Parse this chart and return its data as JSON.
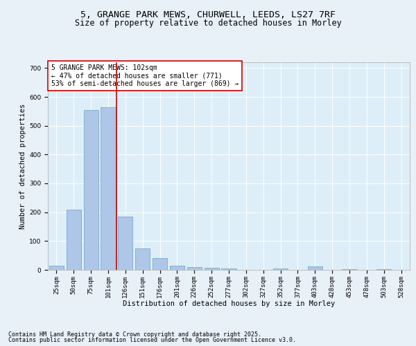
{
  "title_line1": "5, GRANGE PARK MEWS, CHURWELL, LEEDS, LS27 7RF",
  "title_line2": "Size of property relative to detached houses in Morley",
  "xlabel": "Distribution of detached houses by size in Morley",
  "ylabel": "Number of detached properties",
  "bar_categories": [
    "25sqm",
    "50sqm",
    "75sqm",
    "101sqm",
    "126sqm",
    "151sqm",
    "176sqm",
    "201sqm",
    "226sqm",
    "252sqm",
    "277sqm",
    "302sqm",
    "327sqm",
    "352sqm",
    "377sqm",
    "403sqm",
    "428sqm",
    "453sqm",
    "478sqm",
    "503sqm",
    "528sqm"
  ],
  "bar_values": [
    15,
    210,
    555,
    565,
    185,
    75,
    40,
    15,
    10,
    8,
    5,
    0,
    0,
    5,
    0,
    12,
    0,
    3,
    0,
    2,
    0
  ],
  "bar_color": "#aec6e8",
  "bar_edge_color": "#6a9fc0",
  "vline_color": "#cc0000",
  "ylim": [
    0,
    720
  ],
  "yticks": [
    0,
    100,
    200,
    300,
    400,
    500,
    600,
    700
  ],
  "annotation_text": "5 GRANGE PARK MEWS: 102sqm\n← 47% of detached houses are smaller (771)\n53% of semi-detached houses are larger (869) →",
  "annotation_box_color": "#ffffff",
  "annotation_box_edge": "#cc0000",
  "bg_color": "#e8f0f8",
  "plot_bg_color": "#ddeef8",
  "footer_line1": "Contains HM Land Registry data © Crown copyright and database right 2025.",
  "footer_line2": "Contains public sector information licensed under the Open Government Licence v3.0.",
  "title_fontsize": 9.5,
  "subtitle_fontsize": 8.5,
  "axis_label_fontsize": 7.5,
  "tick_fontsize": 6.5,
  "annotation_fontsize": 7,
  "footer_fontsize": 6
}
